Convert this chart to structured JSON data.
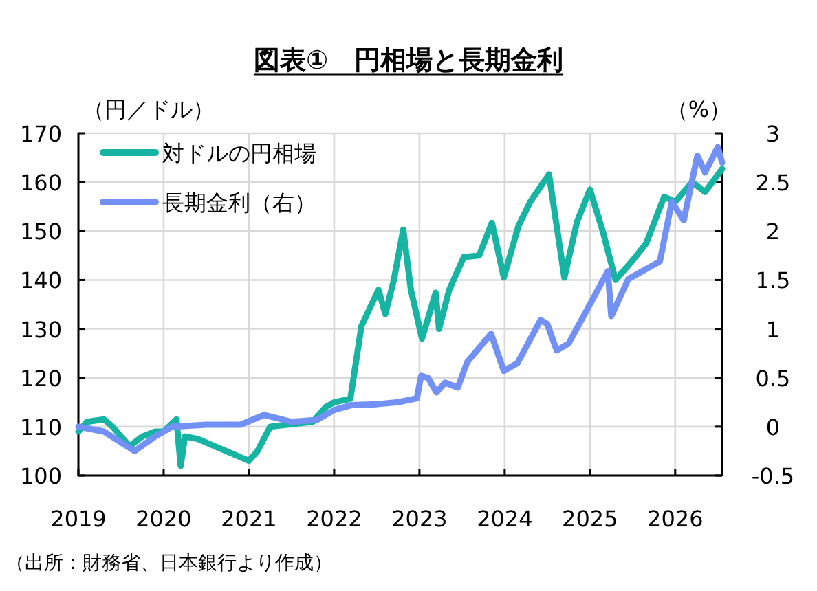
{
  "chart_data": {
    "type": "line",
    "title": "図表①　円相場と長期金利",
    "ylabel": "（円／ドル）",
    "y2label": "（%）",
    "xlim": [
      2019,
      2026.55
    ],
    "xticks": [
      2019,
      2020,
      2021,
      2022,
      2023,
      2024,
      2025,
      2026
    ],
    "ylim": [
      100,
      170
    ],
    "yticks": [
      100,
      110,
      120,
      130,
      140,
      150,
      160,
      170
    ],
    "y2lim": [
      -0.5,
      3
    ],
    "y2ticks": [
      -0.5,
      0,
      0.5,
      1,
      1.5,
      2,
      2.5,
      3
    ],
    "grid": true,
    "legend": "top left",
    "series": [
      {
        "name": "対ドルの円相場",
        "color": "#17b3a3",
        "x": [
          2019.0,
          2019.1,
          2019.3,
          2019.4,
          2019.6,
          2019.75,
          2019.9,
          2020.0,
          2020.15,
          2020.2,
          2020.25,
          2020.4,
          2020.6,
          2020.8,
          2021.0,
          2021.1,
          2021.25,
          2021.5,
          2021.75,
          2021.9,
          2022.0,
          2022.19,
          2022.32,
          2022.52,
          2022.6,
          2022.7,
          2022.81,
          2022.9,
          2023.03,
          2023.19,
          2023.23,
          2023.35,
          2023.52,
          2023.7,
          2023.85,
          2023.99,
          2024.16,
          2024.3,
          2024.52,
          2024.7,
          2024.85,
          2025.0,
          2025.15,
          2025.3,
          2025.5,
          2025.66,
          2025.87,
          2026.0,
          2026.2,
          2026.35,
          2026.55
        ],
        "values": [
          109,
          111,
          111.5,
          110,
          106,
          108,
          109,
          109,
          111.5,
          102,
          108,
          107.5,
          106,
          104.5,
          103,
          105,
          110,
          110.5,
          111,
          114,
          115,
          115.7,
          130.6,
          138,
          133,
          140,
          150.3,
          138,
          128,
          137.4,
          130,
          138,
          144.7,
          145,
          151.7,
          140.5,
          151,
          156,
          161.6,
          140.5,
          152,
          158.5,
          150,
          140,
          144,
          147.5,
          157,
          156,
          160,
          158,
          162.7
        ]
      },
      {
        "name": "長期金利（右）",
        "color": "#7391f5",
        "axis": "y2",
        "x": [
          2019.0,
          2019.3,
          2019.66,
          2019.9,
          2020.1,
          2020.5,
          2020.9,
          2021.18,
          2021.5,
          2021.8,
          2022.0,
          2022.2,
          2022.5,
          2022.75,
          2022.97,
          2023.02,
          2023.1,
          2023.2,
          2023.3,
          2023.45,
          2023.56,
          2023.84,
          2023.99,
          2024.15,
          2024.42,
          2024.5,
          2024.61,
          2024.75,
          2024.95,
          2025.21,
          2025.25,
          2025.45,
          2025.82,
          2025.96,
          2026.1,
          2026.26,
          2026.35,
          2026.5,
          2026.55
        ],
        "values": [
          0,
          -0.05,
          -0.25,
          -0.1,
          0,
          0.02,
          0.02,
          0.12,
          0.05,
          0.07,
          0.17,
          0.22,
          0.23,
          0.25,
          0.29,
          0.52,
          0.5,
          0.35,
          0.45,
          0.4,
          0.66,
          0.95,
          0.57,
          0.65,
          1.09,
          1.05,
          0.78,
          0.85,
          1.17,
          1.59,
          1.13,
          1.51,
          1.69,
          2.3,
          2.11,
          2.77,
          2.6,
          2.86,
          2.7
        ]
      }
    ],
    "annotations": [
      "（出所：財務省、日本銀行より作成）"
    ]
  }
}
